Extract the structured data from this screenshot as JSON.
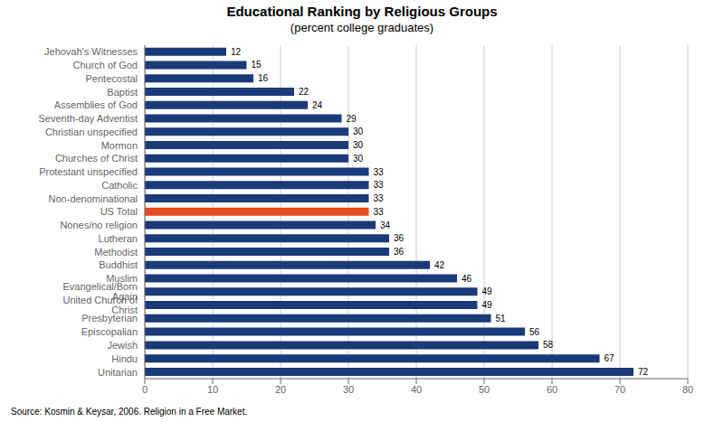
{
  "chart_data": {
    "type": "bar",
    "orientation": "horizontal",
    "title": "Educational Ranking by Religious Groups",
    "subtitle": "(percent college graduates)",
    "annotations": [
      "Source: Kosmin & Keysar, 2006. Religion in a Free Market."
    ],
    "categories": [
      "Jehovah's Witnesses",
      "Church of God",
      "Pentecostal",
      "Baptist",
      "Assemblies of God",
      "Seventh-day Adventist",
      "Christian unspecified",
      "Mormon",
      "Churches of Christ",
      "Protestant unspecified",
      "Catholic",
      "Non-denominational",
      "US Total",
      "Nones/no religion",
      "Lutheran",
      "Methodist",
      "Buddhist",
      "Muslim",
      "Evangelical/Born Again",
      "United Church of Christ",
      "Presbyterian",
      "Episcopalian",
      "Jewish",
      "Hindu",
      "Unitarian"
    ],
    "values": [
      12,
      15,
      16,
      22,
      24,
      29,
      30,
      30,
      30,
      33,
      33,
      33,
      33,
      34,
      36,
      36,
      42,
      46,
      49,
      49,
      51,
      56,
      58,
      67,
      72
    ],
    "colors": [
      "#1a3a7a",
      "#1a3a7a",
      "#1a3a7a",
      "#1a3a7a",
      "#1a3a7a",
      "#1a3a7a",
      "#1a3a7a",
      "#1a3a7a",
      "#1a3a7a",
      "#1a3a7a",
      "#1a3a7a",
      "#1a3a7a",
      "#e84c1e",
      "#1a3a7a",
      "#1a3a7a",
      "#1a3a7a",
      "#1a3a7a",
      "#1a3a7a",
      "#1a3a7a",
      "#1a3a7a",
      "#1a3a7a",
      "#1a3a7a",
      "#1a3a7a",
      "#1a3a7a",
      "#1a3a7a"
    ],
    "xlim": [
      0,
      80
    ],
    "xticks": [
      0,
      10,
      20,
      30,
      40,
      50,
      60,
      70,
      80
    ],
    "grid": true,
    "data_labels": true
  }
}
